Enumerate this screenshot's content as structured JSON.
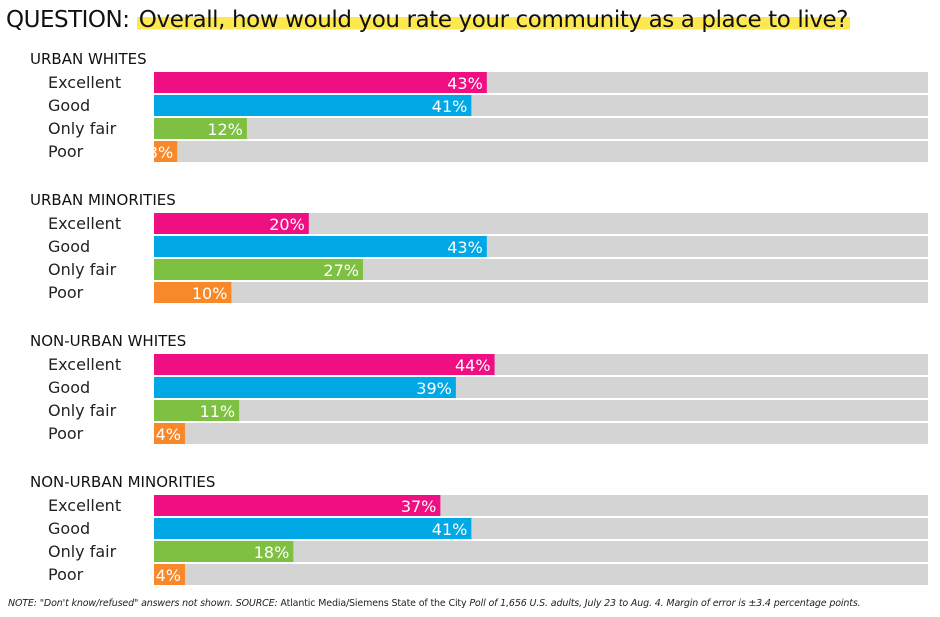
{
  "header": {
    "label": "QUESTION:",
    "question": "Overall, how would you rate your community as a place to live?"
  },
  "colors": {
    "Excellent": "#ef0f83",
    "Good": "#00a9e6",
    "Only fair": "#7dc042",
    "Poor": "#f7892a",
    "track": "#d4d4d4"
  },
  "chart_data": {
    "type": "bar",
    "orientation": "horizontal",
    "xlim": [
      0,
      100
    ],
    "categories": [
      "Excellent",
      "Good",
      "Only fair",
      "Poor"
    ],
    "groups": [
      {
        "name": "URBAN WHITES",
        "values": [
          43,
          41,
          12,
          3
        ],
        "labels": [
          "43%",
          "41%",
          "12%",
          "3%"
        ]
      },
      {
        "name": "URBAN MINORITIES",
        "values": [
          20,
          43,
          27,
          10
        ],
        "labels": [
          "20%",
          "43%",
          "27%",
          "10%"
        ]
      },
      {
        "name": "NON-URBAN WHITES",
        "values": [
          44,
          39,
          11,
          4
        ],
        "labels": [
          "44%",
          "39%",
          "11%",
          "4%"
        ]
      },
      {
        "name": "NON-URBAN MINORITIES",
        "values": [
          37,
          41,
          18,
          4
        ],
        "labels": [
          "37%",
          "41%",
          "18%",
          "4%"
        ]
      }
    ]
  },
  "footnote": {
    "part1": "NOTE: \"Don't know/refused\" answers not shown. SOURCE: ",
    "source": "Atlantic Media/Siemens State of the City",
    "part2": " Poll of 1,656 U.S. adults, July 23 to Aug. 4. Margin of error is ±3.4 percentage points."
  }
}
